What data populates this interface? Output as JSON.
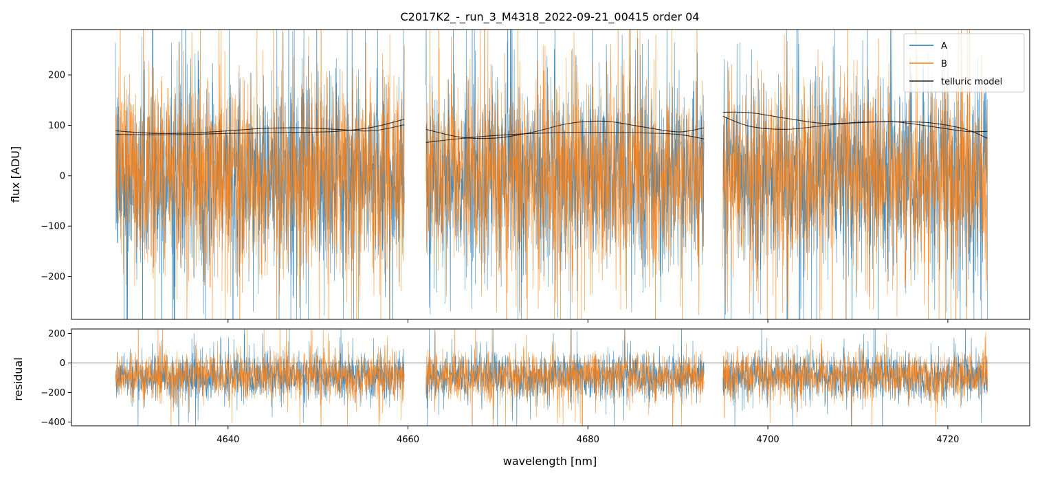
{
  "title": "C2017K2_-_run_3_M4318_2022-09-21_00415  order 04",
  "colors": {
    "A": "#1f77b4",
    "B": "#ff7f0e",
    "telluric": "#000000",
    "frame": "#000000"
  },
  "chart_data": [
    {
      "type": "line",
      "panel": "flux",
      "title": "C2017K2_-_run_3_M4318_2022-09-21_00415  order 04",
      "xlabel": "",
      "ylabel": "flux [ADU]",
      "xlim": [
        4622.6,
        4729.1
      ],
      "ylim": [
        -285,
        290
      ],
      "yticks": [
        -200,
        -100,
        0,
        100,
        200
      ],
      "ytick_labels": [
        "−200",
        "−100",
        "0",
        "100",
        "200"
      ],
      "xticks": [
        4640,
        4660,
        4680,
        4700,
        4720
      ],
      "segments": [
        [
          4627.5,
          4659.6
        ],
        [
          4662.0,
          4692.9
        ],
        [
          4695.0,
          4724.4
        ]
      ],
      "legend_position": "top-right",
      "series": [
        {
          "name": "A",
          "color": "#1f77b4",
          "description": "noisy spectrum centered near 0, amplitude about ±120 ADU with spikes beyond ±290"
        },
        {
          "name": "B",
          "color": "#ff7f0e",
          "description": "noisy spectrum centered near 0, amplitude about ±120 ADU with spikes beyond ±290"
        },
        {
          "name": "telluric model",
          "color": "#000000",
          "curves": [
            {
              "x": [
                4627.5,
                4632,
                4636,
                4640,
                4644,
                4648,
                4652,
                4656,
                4659.6
              ],
              "y": [
                89,
                84,
                85,
                89,
                94,
                95,
                92,
                89,
                101
              ]
            },
            {
              "x": [
                4627.5,
                4632,
                4636,
                4640,
                4644,
                4648,
                4652,
                4656,
                4659.6
              ],
              "y": [
                82,
                81,
                82,
                84,
                85,
                86,
                88,
                96,
                112
              ]
            },
            {
              "x": [
                4662.0,
                4666,
                4670,
                4674,
                4678,
                4682,
                4686,
                4690,
                4692.9
              ],
              "y": [
                92,
                76,
                75,
                87,
                104,
                108,
                97,
                87,
                95
              ]
            },
            {
              "x": [
                4662.0,
                4666,
                4670,
                4674,
                4678,
                4682,
                4686,
                4690,
                4692.9
              ],
              "y": [
                66,
                74,
                80,
                84,
                86,
                86,
                85,
                82,
                73
              ]
            },
            {
              "x": [
                4695.0,
                4698,
                4702,
                4706,
                4710,
                4714,
                4718,
                4722,
                4724.4
              ],
              "y": [
                126,
                125,
                114,
                104,
                105,
                107,
                98,
                88,
                88
              ]
            },
            {
              "x": [
                4695.0,
                4698,
                4702,
                4706,
                4710,
                4714,
                4718,
                4722,
                4724.4
              ],
              "y": [
                118,
                98,
                92,
                99,
                106,
                107,
                105,
                92,
                74
              ]
            }
          ]
        }
      ]
    },
    {
      "type": "line",
      "panel": "residual",
      "title": "",
      "xlabel": "wavelength [nm]",
      "ylabel": "residual",
      "xlim": [
        4622.6,
        4729.1
      ],
      "ylim": [
        -425,
        230
      ],
      "yticks": [
        -400,
        -200,
        0,
        200
      ],
      "ytick_labels": [
        "−400",
        "−200",
        "0",
        "200"
      ],
      "xticks": [
        4640,
        4660,
        4680,
        4700,
        4720
      ],
      "xtick_labels": [
        "4640",
        "4660",
        "4680",
        "4700",
        "4720"
      ],
      "zero_line": true,
      "series": [
        {
          "name": "A",
          "color": "#1f77b4",
          "description": "residual noise centered near -90, amplitude about ±150"
        },
        {
          "name": "B",
          "color": "#ff7f0e",
          "description": "residual noise centered near -90, amplitude about ±150"
        }
      ]
    }
  ]
}
